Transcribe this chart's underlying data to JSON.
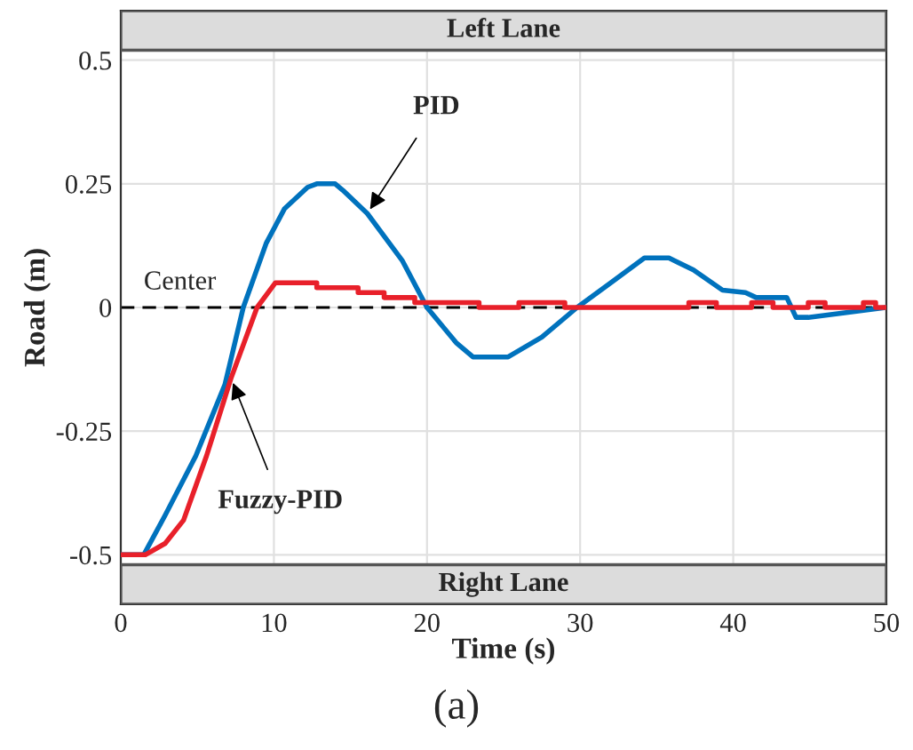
{
  "chart_data": {
    "type": "line",
    "xlabel": "Time (s)",
    "ylabel": "Road (m)",
    "xlim": [
      0,
      50
    ],
    "xticks": [
      0,
      10,
      20,
      30,
      40,
      50
    ],
    "ylim": [
      -0.6,
      0.6
    ],
    "yticks": [
      -0.5,
      -0.25,
      0,
      0.25,
      0.5
    ],
    "grid": true,
    "legend": false,
    "series": [
      {
        "name": "PID",
        "color": "#0072bd",
        "x": [
          0,
          1.5,
          2.9,
          4.9,
          6.8,
          8.0,
          9.5,
          10.7,
          12.2,
          12.8,
          14.0,
          14.5,
          16.1,
          18.4,
          20.0,
          21.9,
          23.0,
          25.3,
          27.5,
          29.8,
          32.0,
          34.2,
          35.8,
          37.4,
          39.3,
          40.8,
          41.5,
          43.5,
          44.1,
          44.9,
          47.5,
          50
        ],
        "values": [
          -0.5,
          -0.5,
          -0.42,
          -0.3,
          -0.156,
          0,
          0.13,
          0.2,
          0.243,
          0.25,
          0.25,
          0.237,
          0.19,
          0.094,
          0,
          -0.071,
          -0.1,
          -0.1,
          -0.06,
          0,
          0.05,
          0.1,
          0.1,
          0.076,
          0.035,
          0.03,
          0.02,
          0.02,
          -0.02,
          -0.02,
          -0.01,
          0
        ]
      },
      {
        "name": "Fuzzy-PID",
        "color": "#e8202a",
        "x": [
          0,
          1.6,
          2.9,
          4.1,
          5.6,
          7.2,
          8.9,
          10.1,
          12.8,
          12.8,
          15.5,
          15.5,
          17.2,
          17.2,
          19.2,
          19.2,
          23.4,
          23.4,
          26,
          26,
          29,
          29,
          37.1,
          37.1,
          38.9,
          38.9,
          41.2,
          41.2,
          42.6,
          42.6,
          44.9,
          44.9,
          46,
          46,
          48.5,
          48.5,
          49.3,
          49.3,
          50
        ],
        "values": [
          -0.5,
          -0.5,
          -0.477,
          -0.43,
          -0.3,
          -0.143,
          0,
          0.05,
          0.05,
          0.04,
          0.04,
          0.03,
          0.03,
          0.02,
          0.02,
          0.01,
          0.01,
          0,
          0,
          0.01,
          0.01,
          0,
          0,
          0.01,
          0.01,
          0,
          0,
          0.01,
          0.01,
          0,
          0,
          0.01,
          0.01,
          0,
          0,
          0.01,
          0.01,
          0,
          0
        ]
      }
    ],
    "ref_lines": [
      {
        "axis": "y",
        "value": 0,
        "label": "Center",
        "color": "#000000",
        "line_style": "dashed"
      }
    ],
    "bands": [
      {
        "axis": "y",
        "from": 0.52,
        "to": 0.6,
        "label": "Left Lane",
        "color": "#dcdcdc"
      },
      {
        "axis": "y",
        "from": -0.6,
        "to": -0.52,
        "label": "Right Lane",
        "color": "#dcdcdc"
      }
    ],
    "annotations": [
      "(a)"
    ]
  }
}
